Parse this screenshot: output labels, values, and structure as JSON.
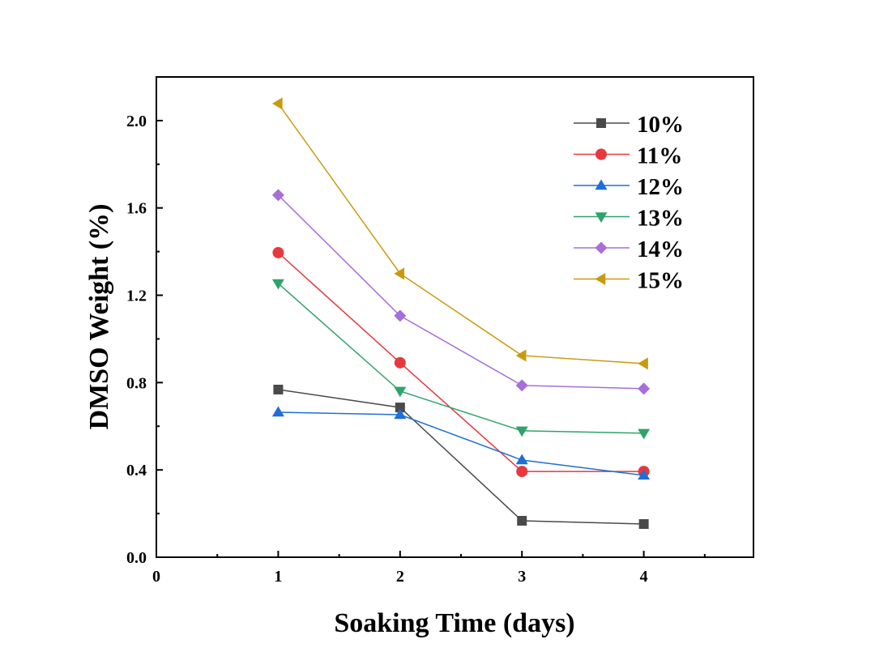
{
  "chart_data": {
    "type": "line",
    "title": "",
    "xlabel": "Soaking Time (days)",
    "ylabel": "DMSO Weight (%)",
    "xlim": [
      0,
      4.9
    ],
    "ylim": [
      0,
      2.2
    ],
    "xticks": [
      0,
      1,
      2,
      3,
      4
    ],
    "xtick_labels": [
      "0",
      "1",
      "2",
      "3",
      "4"
    ],
    "yticks": [
      0,
      0.4,
      0.8,
      1.2,
      1.6,
      2.0
    ],
    "ytick_labels": [
      "0.0",
      "0.4",
      "0.8",
      "1.2",
      "1.6",
      "2.0"
    ],
    "grid": false,
    "legend_position": "top-right",
    "x": [
      1,
      2,
      3,
      4
    ],
    "series": [
      {
        "name": "10%",
        "marker": "square",
        "color": "#4a4a4a",
        "values": [
          0.768,
          0.686,
          0.167,
          0.152
        ]
      },
      {
        "name": "11%",
        "marker": "circle",
        "color": "#e8383d",
        "values": [
          1.395,
          0.891,
          0.393,
          0.393
        ]
      },
      {
        "name": "12%",
        "marker": "triangle-up",
        "color": "#1f6fd6",
        "values": [
          0.664,
          0.653,
          0.445,
          0.375
        ]
      },
      {
        "name": "13%",
        "marker": "triangle-down",
        "color": "#2fa36b",
        "values": [
          1.254,
          0.761,
          0.579,
          0.568
        ]
      },
      {
        "name": "14%",
        "marker": "diamond",
        "color": "#a66fd9",
        "values": [
          1.659,
          1.106,
          0.787,
          0.772
        ]
      },
      {
        "name": "15%",
        "marker": "triangle-left",
        "color": "#c99a0e",
        "values": [
          2.078,
          1.299,
          0.924,
          0.887
        ]
      }
    ]
  }
}
